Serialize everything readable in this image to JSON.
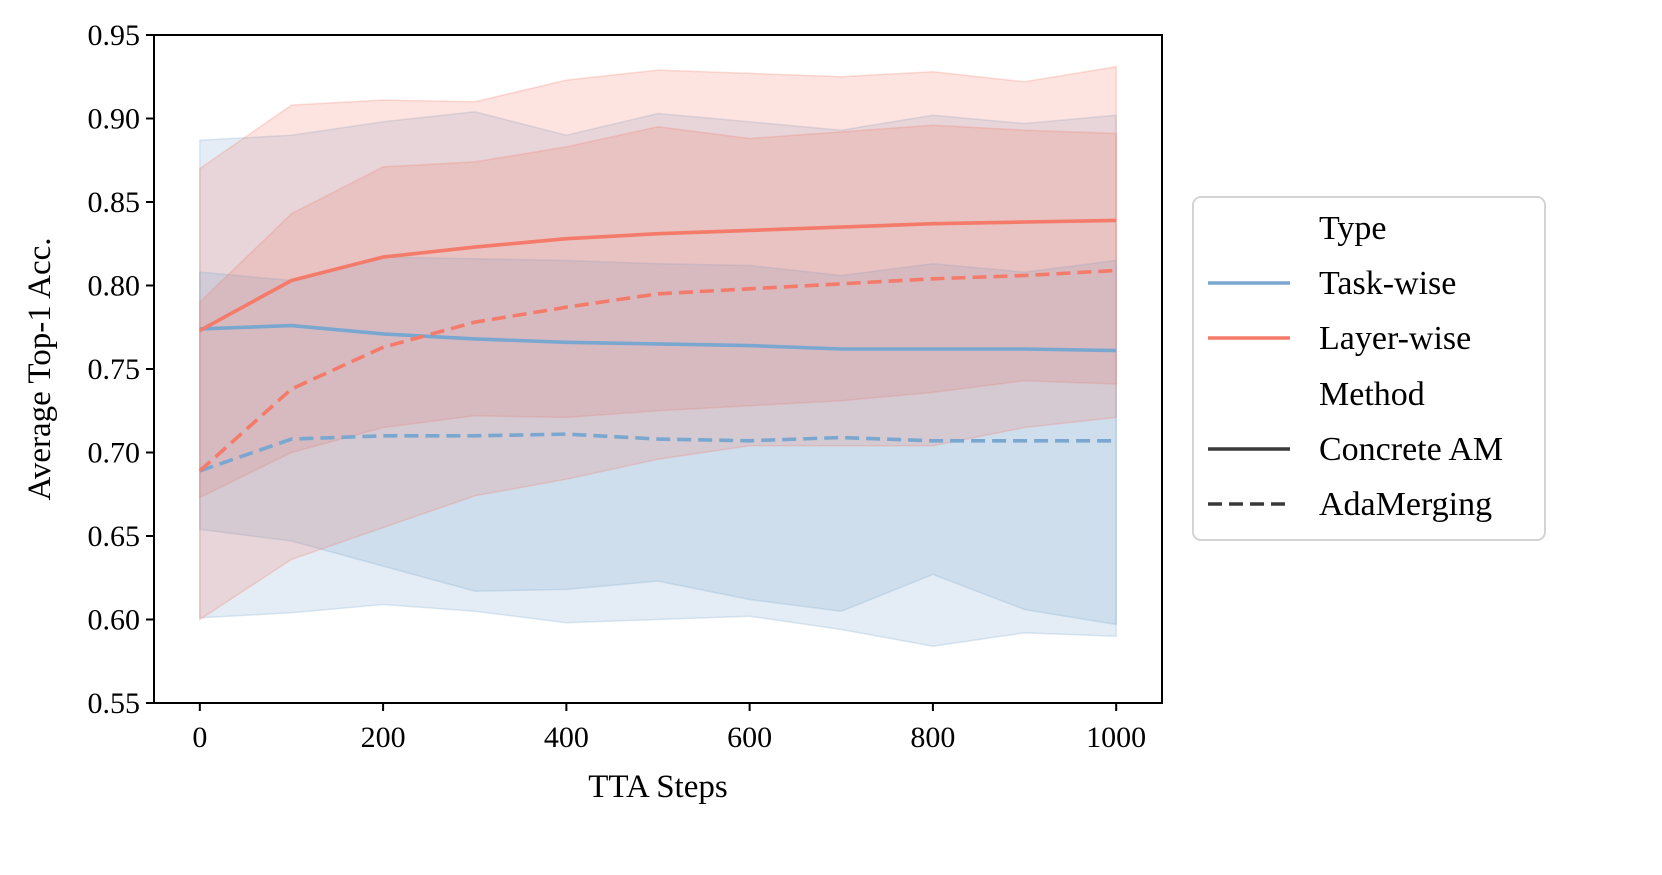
{
  "chart_data": {
    "type": "line",
    "title": "",
    "xlabel": "TTA Steps",
    "ylabel": "Average Top-1 Acc.",
    "xlim": [
      -50,
      1050
    ],
    "ylim": [
      0.55,
      0.95
    ],
    "xticks": [
      0,
      200,
      400,
      600,
      800,
      1000
    ],
    "xtick_labels": [
      "0",
      "200",
      "400",
      "600",
      "800",
      "1000"
    ],
    "yticks": [
      0.55,
      0.6,
      0.65,
      0.7,
      0.75,
      0.8,
      0.85,
      0.9,
      0.95
    ],
    "ytick_labels": [
      "0.55",
      "0.60",
      "0.65",
      "0.70",
      "0.75",
      "0.80",
      "0.85",
      "0.90",
      "0.95"
    ],
    "grid": false,
    "legend_position": "outside-right",
    "x": [
      0,
      100,
      200,
      300,
      400,
      500,
      600,
      700,
      800,
      900,
      1000
    ],
    "series": [
      {
        "name": "Task-wise / Concrete AM",
        "type": "Task-wise",
        "method": "Concrete AM",
        "color": "#7aa7cf",
        "dash": "solid",
        "values": [
          0.774,
          0.776,
          0.771,
          0.768,
          0.766,
          0.765,
          0.764,
          0.762,
          0.762,
          0.762,
          0.761
        ],
        "lower": [
          0.654,
          0.647,
          0.632,
          0.617,
          0.618,
          0.623,
          0.612,
          0.605,
          0.627,
          0.606,
          0.597
        ],
        "upper": [
          0.887,
          0.89,
          0.898,
          0.904,
          0.89,
          0.903,
          0.898,
          0.893,
          0.902,
          0.897,
          0.902
        ]
      },
      {
        "name": "Layer-wise / Concrete AM",
        "type": "Layer-wise",
        "method": "Concrete AM",
        "color": "#f47a69",
        "dash": "solid",
        "values": [
          0.773,
          0.803,
          0.817,
          0.823,
          0.828,
          0.831,
          0.833,
          0.835,
          0.837,
          0.838,
          0.839
        ],
        "lower": [
          0.673,
          0.7,
          0.715,
          0.722,
          0.721,
          0.725,
          0.728,
          0.731,
          0.736,
          0.743,
          0.741
        ],
        "upper": [
          0.87,
          0.908,
          0.911,
          0.91,
          0.923,
          0.929,
          0.927,
          0.925,
          0.928,
          0.922,
          0.931
        ]
      },
      {
        "name": "Task-wise / AdaMerging",
        "type": "Task-wise",
        "method": "AdaMerging",
        "color": "#7aa7cf",
        "dash": "dashed",
        "values": [
          0.689,
          0.708,
          0.71,
          0.71,
          0.711,
          0.708,
          0.707,
          0.709,
          0.707,
          0.707,
          0.707
        ],
        "lower": [
          0.601,
          0.604,
          0.609,
          0.605,
          0.598,
          0.6,
          0.602,
          0.594,
          0.584,
          0.592,
          0.59
        ],
        "upper": [
          0.808,
          0.803,
          0.817,
          0.816,
          0.815,
          0.813,
          0.812,
          0.806,
          0.813,
          0.808,
          0.815
        ]
      },
      {
        "name": "Layer-wise / AdaMerging",
        "type": "Layer-wise",
        "method": "AdaMerging",
        "color": "#f47a69",
        "dash": "dashed",
        "values": [
          0.689,
          0.738,
          0.763,
          0.778,
          0.787,
          0.795,
          0.798,
          0.801,
          0.804,
          0.806,
          0.809
        ],
        "lower": [
          0.6,
          0.636,
          0.655,
          0.674,
          0.684,
          0.696,
          0.704,
          0.704,
          0.704,
          0.715,
          0.721
        ],
        "upper": [
          0.79,
          0.843,
          0.871,
          0.874,
          0.883,
          0.895,
          0.888,
          0.892,
          0.896,
          0.893,
          0.891
        ]
      }
    ],
    "legend": {
      "type_heading": "Type",
      "type_entries": [
        {
          "label": "Task-wise",
          "color": "#7aa7cf"
        },
        {
          "label": "Layer-wise",
          "color": "#f47a69"
        }
      ],
      "method_heading": "Method",
      "method_entries": [
        {
          "label": "Concrete AM",
          "dash": "solid",
          "color": "#3a3a3a"
        },
        {
          "label": "AdaMerging",
          "dash": "dashed",
          "color": "#3a3a3a"
        }
      ]
    }
  }
}
